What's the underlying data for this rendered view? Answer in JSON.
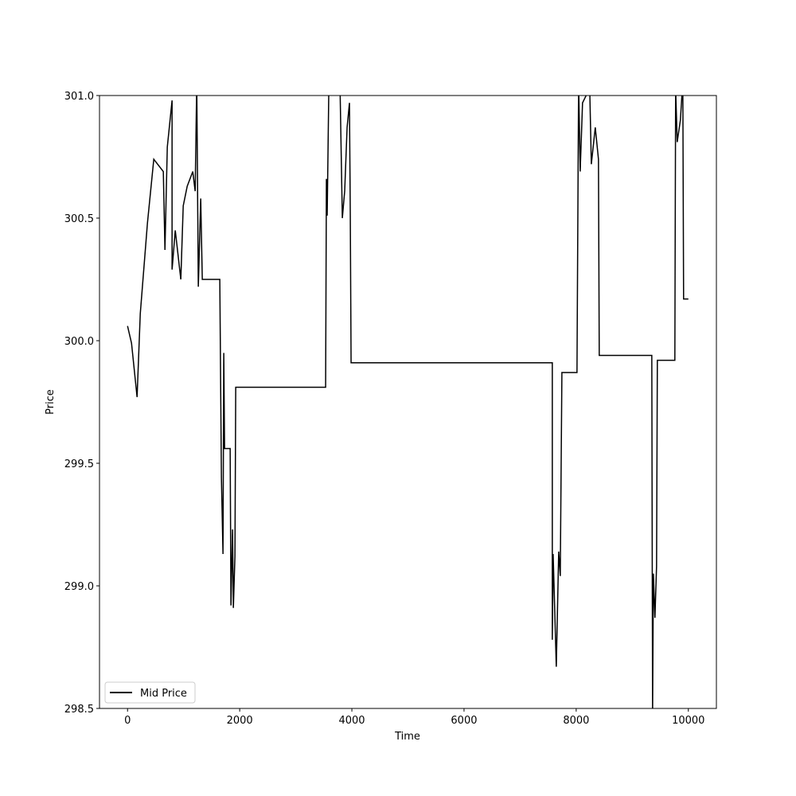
{
  "chart_data": {
    "type": "line",
    "x_label": "Time",
    "y_label": "Price",
    "xlim": [
      -500,
      10500
    ],
    "ylim": [
      298.5,
      301.0
    ],
    "xticks": [
      0,
      2000,
      4000,
      6000,
      8000,
      10000
    ],
    "yticks": [
      298.5,
      {
        "value": 299.0,
        "label": "299.0"
      },
      299.5,
      {
        "value": 300.0,
        "label": "300.0"
      },
      300.5,
      {
        "value": 301.0,
        "label": "301.0"
      }
    ],
    "legend": "lower left",
    "series": [
      {
        "name": "Mid Price",
        "color": "#000000",
        "x": [
          0,
          71,
          170,
          227,
          355,
          468,
          638,
          667,
          709,
          794,
          794,
          851,
          950,
          993,
          1064,
          1163,
          1206,
          1234,
          1262,
          1305,
          1333,
          1645,
          1674,
          1702,
          1716,
          1730,
          1830,
          1844,
          1872,
          1887,
          1915,
          1929,
          3532,
          3546,
          3560,
          3589,
          3787,
          3830,
          3872,
          3915,
          3957,
          3972,
          3986,
          7574,
          7574,
          7589,
          7645,
          7688,
          7716,
          7745,
          8014,
          8043,
          8071,
          8113,
          8241,
          8270,
          8340,
          8397,
          8411,
          9348,
          9362,
          9376,
          9404,
          9433,
          9447,
          9759,
          9773,
          9801,
          9858,
          9901,
          9915,
          10000
        ],
        "values": [
          300.06,
          299.99,
          299.77,
          300.11,
          300.48,
          300.74,
          300.69,
          300.37,
          300.79,
          300.98,
          300.29,
          300.45,
          300.25,
          300.55,
          300.63,
          300.69,
          300.61,
          301.06,
          300.22,
          300.58,
          300.25,
          300.25,
          299.44,
          299.13,
          299.95,
          299.56,
          299.56,
          298.92,
          299.23,
          298.91,
          299.12,
          299.81,
          299.81,
          300.66,
          300.51,
          301.03,
          301.06,
          300.5,
          300.61,
          300.87,
          300.97,
          300.51,
          299.91,
          299.91,
          298.78,
          299.13,
          298.67,
          299.14,
          299.04,
          299.87,
          299.87,
          301.06,
          300.69,
          300.97,
          301.03,
          300.72,
          300.87,
          300.74,
          299.94,
          299.94,
          298.47,
          299.05,
          298.87,
          299.08,
          299.92,
          299.92,
          301.03,
          300.81,
          300.9,
          301.06,
          300.17,
          300.17
        ]
      }
    ]
  }
}
